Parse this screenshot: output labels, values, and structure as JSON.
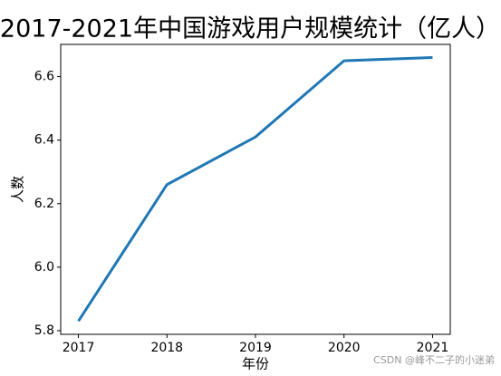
{
  "chart_data": {
    "type": "line",
    "title": "2017-2021年中国游戏用户规模统计（亿人）",
    "x_label": "年份",
    "y_label": "人数",
    "x": [
      2017,
      2018,
      2019,
      2020,
      2021
    ],
    "series": [
      {
        "name": "人数",
        "color": "#1f77b4",
        "values": [
          5.83,
          6.26,
          6.41,
          6.65,
          6.66
        ]
      }
    ],
    "xlim": [
      2016.8,
      2021.2
    ],
    "xticks": [
      2017,
      2018,
      2019,
      2020,
      2021
    ],
    "ylim": [
      5.7885,
      6.7015
    ],
    "yticks": [
      5.8,
      {
        "value": 6,
        "label": "6.0"
      },
      6.2,
      6.4,
      6.6
    ],
    "grid": false,
    "legend": false,
    "watermark": "CSDN @峰不二子的小迷弟"
  }
}
